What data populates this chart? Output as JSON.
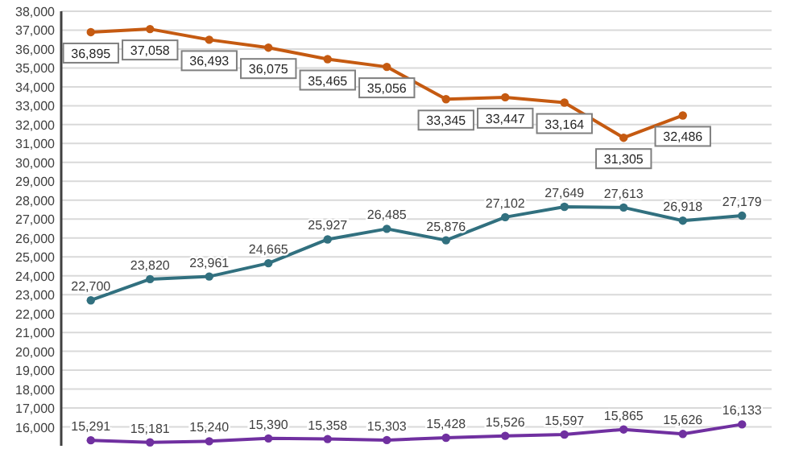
{
  "chart_data": {
    "type": "line",
    "categories": [
      null,
      null,
      null,
      null,
      null,
      null,
      null,
      null,
      null,
      null,
      null,
      null
    ],
    "ylim": [
      15000,
      38000
    ],
    "yticks": [
      {
        "value": 16000,
        "label": "16,000"
      },
      {
        "value": 17000,
        "label": "17,000"
      },
      {
        "value": 18000,
        "label": "18,000"
      },
      {
        "value": 19000,
        "label": "19,000"
      },
      {
        "value": 20000,
        "label": "20,000"
      },
      {
        "value": 21000,
        "label": "21,000"
      },
      {
        "value": 22000,
        "label": "22,000"
      },
      {
        "value": 23000,
        "label": "23,000"
      },
      {
        "value": 24000,
        "label": "24,000"
      },
      {
        "value": 25000,
        "label": "25,000"
      },
      {
        "value": 26000,
        "label": "26,000"
      },
      {
        "value": 27000,
        "label": "27,000"
      },
      {
        "value": 28000,
        "label": "28,000"
      },
      {
        "value": 29000,
        "label": "29,000"
      },
      {
        "value": 30000,
        "label": "30,000"
      },
      {
        "value": 31000,
        "label": "31,000"
      },
      {
        "value": 32000,
        "label": "32,000"
      },
      {
        "value": 33000,
        "label": "33,000"
      },
      {
        "value": 34000,
        "label": "34,000"
      },
      {
        "value": 35000,
        "label": "35,000"
      },
      {
        "value": 36000,
        "label": "36,000"
      },
      {
        "value": 37000,
        "label": "37,000"
      },
      {
        "value": 38000,
        "label": "38,000"
      }
    ],
    "grid": "y",
    "marker": "circle",
    "series": [
      {
        "color": "#c55a11",
        "values": [
          36895,
          37058,
          36493,
          36075,
          35465,
          35056,
          33345,
          33447,
          33164,
          31305,
          32486,
          null
        ],
        "value_labels": [
          "36,895",
          "37,058",
          "36,493",
          "36,075",
          "35,465",
          "35,056",
          "33,345",
          "33,447",
          "33,164",
          "31,305",
          "32,486",
          null
        ]
      },
      {
        "color": "#31707f",
        "values": [
          22700,
          23820,
          23961,
          24665,
          25927,
          26485,
          25876,
          27102,
          27649,
          27613,
          26918,
          27179
        ],
        "value_labels": [
          "22,700",
          "23,820",
          "23,961",
          "24,665",
          "25,927",
          "26,485",
          "25,876",
          "27,102",
          "27,649",
          "27,613",
          "26,918",
          "27,179"
        ]
      },
      {
        "color": "#7030a0",
        "values": [
          15291,
          15181,
          15240,
          15390,
          15358,
          15303,
          15428,
          15526,
          15597,
          15865,
          15626,
          16133
        ],
        "value_labels": [
          "15,291",
          "15,181",
          "15,240",
          "15,390",
          "15,358",
          "15,303",
          "15,428",
          "15,526",
          "15,597",
          "15,865",
          "15,626",
          "16,133"
        ]
      }
    ]
  }
}
